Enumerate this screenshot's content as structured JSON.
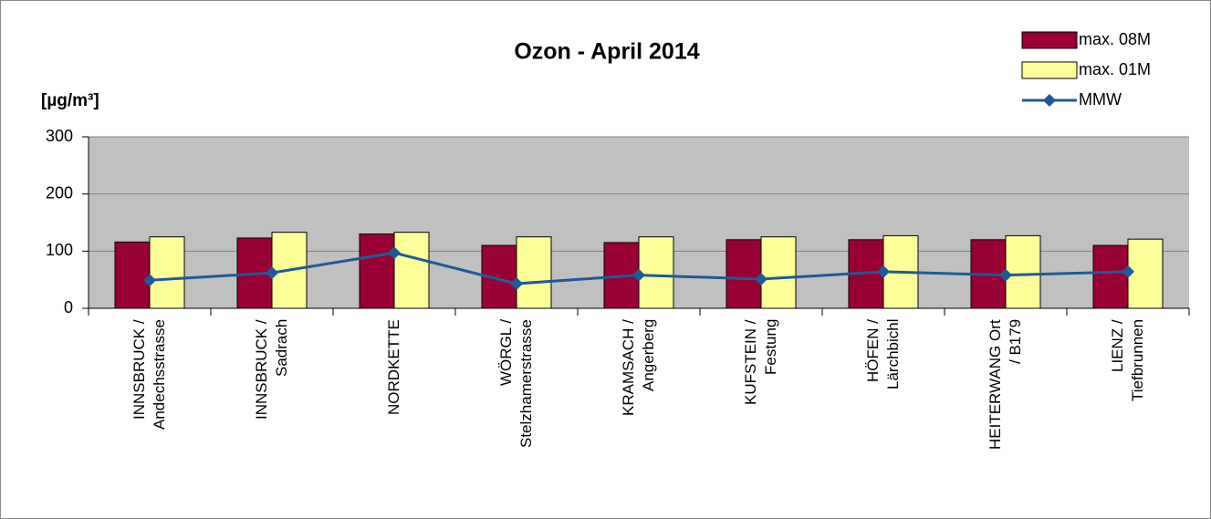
{
  "chart_data": {
    "type": "bar",
    "title": "Ozon  - April 2014",
    "y_label": "[µg/m³]",
    "categories": [
      "INNSBRUCK /\nAndechsstrasse",
      "INNSBRUCK /\nSadrach",
      "NORDKETTE",
      "WÖRGL /\nStelzhamerstrasse",
      "KRAMSACH /\nAngerberg",
      "KUFSTEIN /\nFestung",
      "HÖFEN /\nLärchbichl",
      "HEITERWANG Ort\n/ B179",
      "LIENZ /\nTiefbrunnen"
    ],
    "series": [
      {
        "name": "max. 08M",
        "color": "#990033",
        "type": "bar",
        "values": [
          116,
          123,
          130,
          110,
          115,
          120,
          120,
          120,
          110
        ]
      },
      {
        "name": "max. 01M",
        "color": "#ffff99",
        "type": "bar",
        "values": [
          125,
          133,
          133,
          125,
          125,
          125,
          127,
          127,
          121
        ]
      },
      {
        "name": "MMW",
        "color": "#1f5a96",
        "type": "line",
        "values": [
          49,
          62,
          97,
          43,
          58,
          51,
          64,
          58,
          64
        ]
      }
    ],
    "ylim": [
      0,
      300
    ],
    "yticks": [
      0,
      100,
      200,
      300
    ],
    "grid": true,
    "plot_background": "#c0c0c0",
    "legend": "top-right"
  }
}
